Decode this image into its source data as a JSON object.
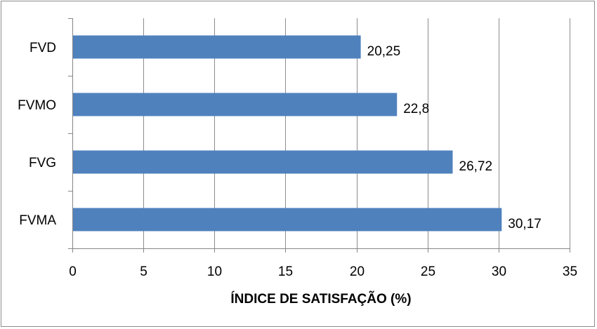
{
  "chart_data": {
    "type": "bar",
    "orientation": "horizontal",
    "categories": [
      "FVD",
      "FVMO",
      "FVG",
      "FVMA"
    ],
    "values": [
      20.25,
      22.8,
      26.72,
      30.17
    ],
    "data_labels": [
      "20,25",
      "22,8",
      "26,72",
      "30,17"
    ],
    "title": "",
    "xlabel": "ÍNDICE DE SATISFAÇÃO (%)",
    "ylabel": "",
    "xlim": [
      0,
      35
    ],
    "x_ticks": [
      "0",
      "5",
      "10",
      "15",
      "20",
      "25",
      "30",
      "35"
    ],
    "x_tick_values": [
      0,
      5,
      10,
      15,
      20,
      25,
      30,
      35
    ],
    "grid": "vertical",
    "legend": "none",
    "colors": {
      "bar": "#4f81bd",
      "grid": "#8c8c8c",
      "axis": "#868686",
      "text": "#000000"
    }
  }
}
